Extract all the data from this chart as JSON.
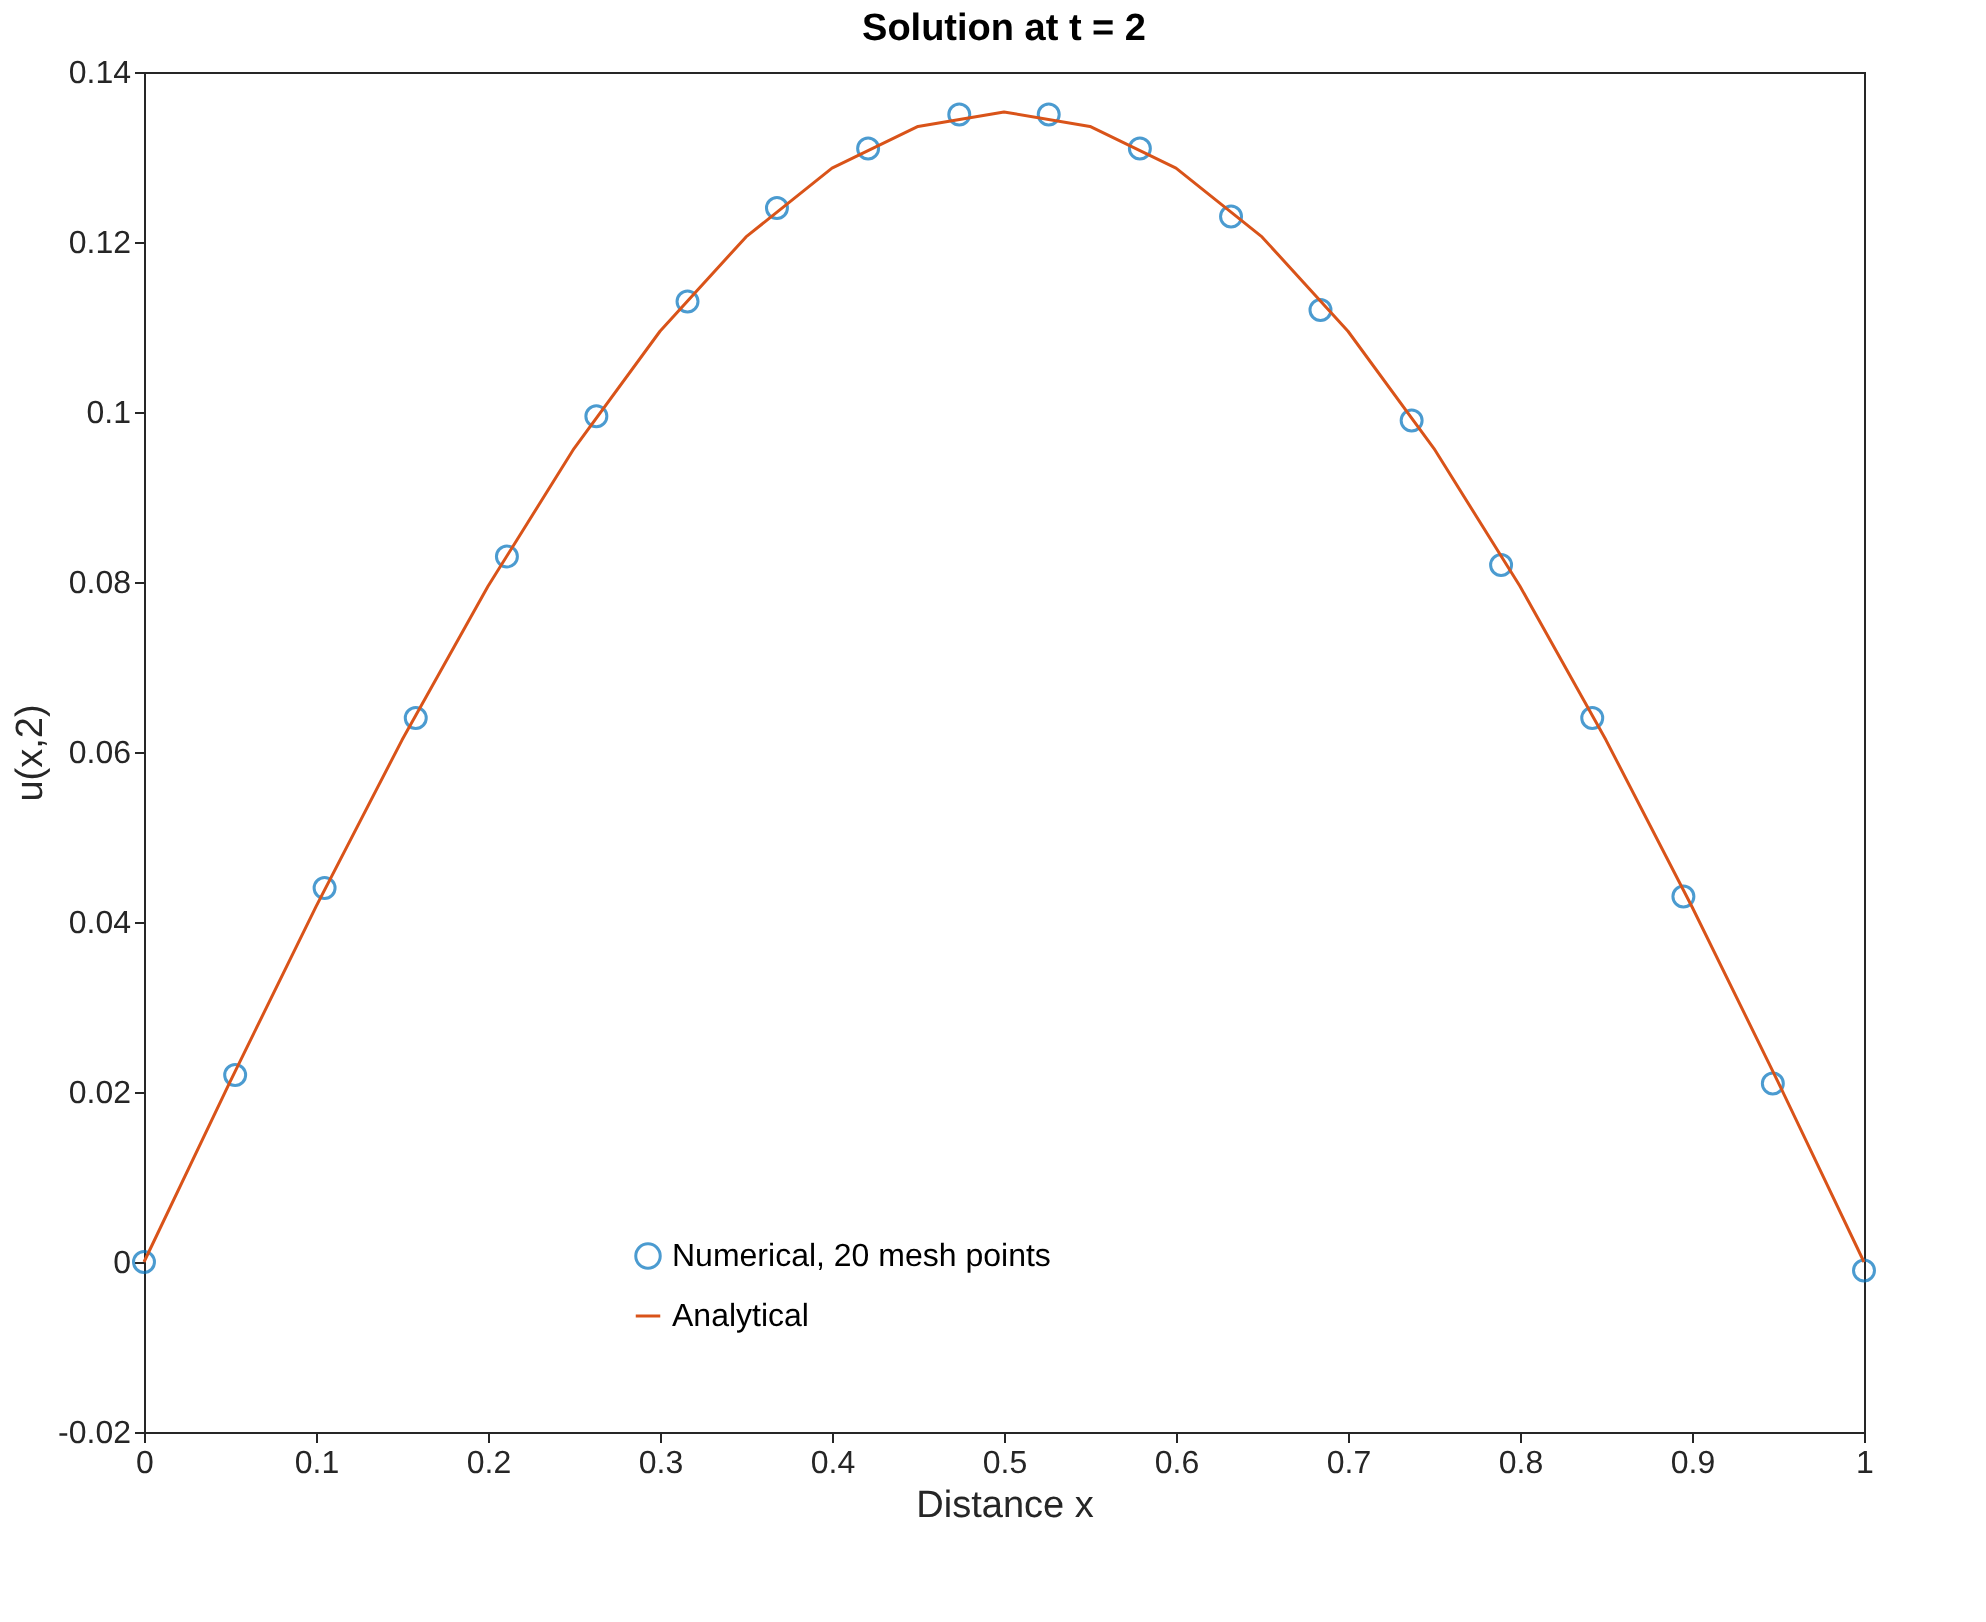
{
  "chart_data": {
    "type": "line",
    "title": "Solution at t = 2",
    "xlabel": "Distance x",
    "ylabel": "u(x,2)",
    "xlim": [
      0,
      1
    ],
    "xticks": [
      0,
      0.1,
      0.2,
      0.3,
      0.4,
      0.5,
      0.6,
      0.7,
      0.8,
      0.9,
      1
    ],
    "ylim": [
      -0.02,
      0.14
    ],
    "yticks": [
      -0.02,
      0,
      0.02,
      0.04,
      0.06,
      0.08,
      0.1,
      0.12,
      0.14
    ],
    "grid": false,
    "legend": "bottom",
    "series": [
      {
        "name": "Numerical, 20 mesh points",
        "type": "scatter",
        "marker": "circle",
        "color": "#0072bd",
        "x": [
          0,
          0.053,
          0.105,
          0.158,
          0.211,
          0.263,
          0.316,
          0.368,
          0.421,
          0.474,
          0.526,
          0.579,
          0.632,
          0.684,
          0.737,
          0.789,
          0.842,
          0.895,
          0.947,
          1
        ],
        "values": [
          0,
          0.022,
          0.044,
          0.064,
          0.083,
          0.0995,
          0.113,
          0.124,
          0.131,
          0.135,
          0.135,
          0.131,
          0.123,
          0.112,
          0.099,
          0.082,
          0.064,
          0.043,
          0.021,
          -0.001
        ]
      },
      {
        "name": "Analytical",
        "type": "line",
        "line_style": "solid",
        "color": "#d95319",
        "x": [
          0,
          0.05,
          0.1,
          0.15,
          0.2,
          0.25,
          0.3,
          0.35,
          0.4,
          0.45,
          0.5,
          0.55,
          0.6,
          0.65,
          0.7,
          0.75,
          0.8,
          0.85,
          0.9,
          0.95,
          1
        ],
        "values": [
          0,
          0.0212,
          0.0418,
          0.0614,
          0.0795,
          0.0957,
          0.1095,
          0.1206,
          0.1287,
          0.1336,
          0.1353,
          0.1336,
          0.1287,
          0.1206,
          0.1095,
          0.0957,
          0.0795,
          0.0614,
          0.0418,
          0.0212,
          0
        ]
      }
    ]
  }
}
